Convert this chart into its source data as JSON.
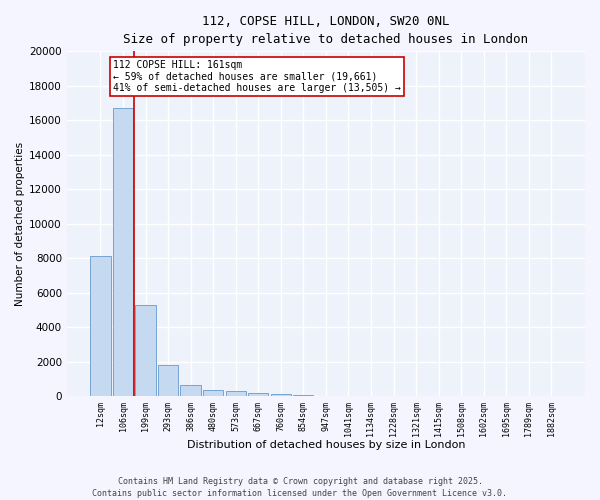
{
  "title_line1": "112, COPSE HILL, LONDON, SW20 0NL",
  "title_line2": "Size of property relative to detached houses in London",
  "xlabel": "Distribution of detached houses by size in London",
  "ylabel": "Number of detached properties",
  "bar_color": "#c5d9f0",
  "bar_edge_color": "#6699cc",
  "background_color": "#eef2fb",
  "grid_color": "#ffffff",
  "categories": [
    "12sqm",
    "106sqm",
    "199sqm",
    "293sqm",
    "386sqm",
    "480sqm",
    "573sqm",
    "667sqm",
    "760sqm",
    "854sqm",
    "947sqm",
    "1041sqm",
    "1134sqm",
    "1228sqm",
    "1321sqm",
    "1415sqm",
    "1508sqm",
    "1602sqm",
    "1695sqm",
    "1789sqm",
    "1882sqm"
  ],
  "values": [
    8100,
    16700,
    5300,
    1800,
    650,
    350,
    270,
    190,
    140,
    50,
    20,
    10,
    5,
    3,
    2,
    1,
    1,
    0,
    0,
    0,
    0
  ],
  "ylim": [
    0,
    20000
  ],
  "yticks": [
    0,
    2000,
    4000,
    6000,
    8000,
    10000,
    12000,
    14000,
    16000,
    18000,
    20000
  ],
  "annotation_text": "112 COPSE HILL: 161sqm\n← 59% of detached houses are smaller (19,661)\n41% of semi-detached houses are larger (13,505) →",
  "vline_x": 1.5,
  "vline_color": "#cc0000",
  "annotation_box_color": "#cc0000",
  "footer_line1": "Contains HM Land Registry data © Crown copyright and database right 2025.",
  "footer_line2": "Contains public sector information licensed under the Open Government Licence v3.0."
}
